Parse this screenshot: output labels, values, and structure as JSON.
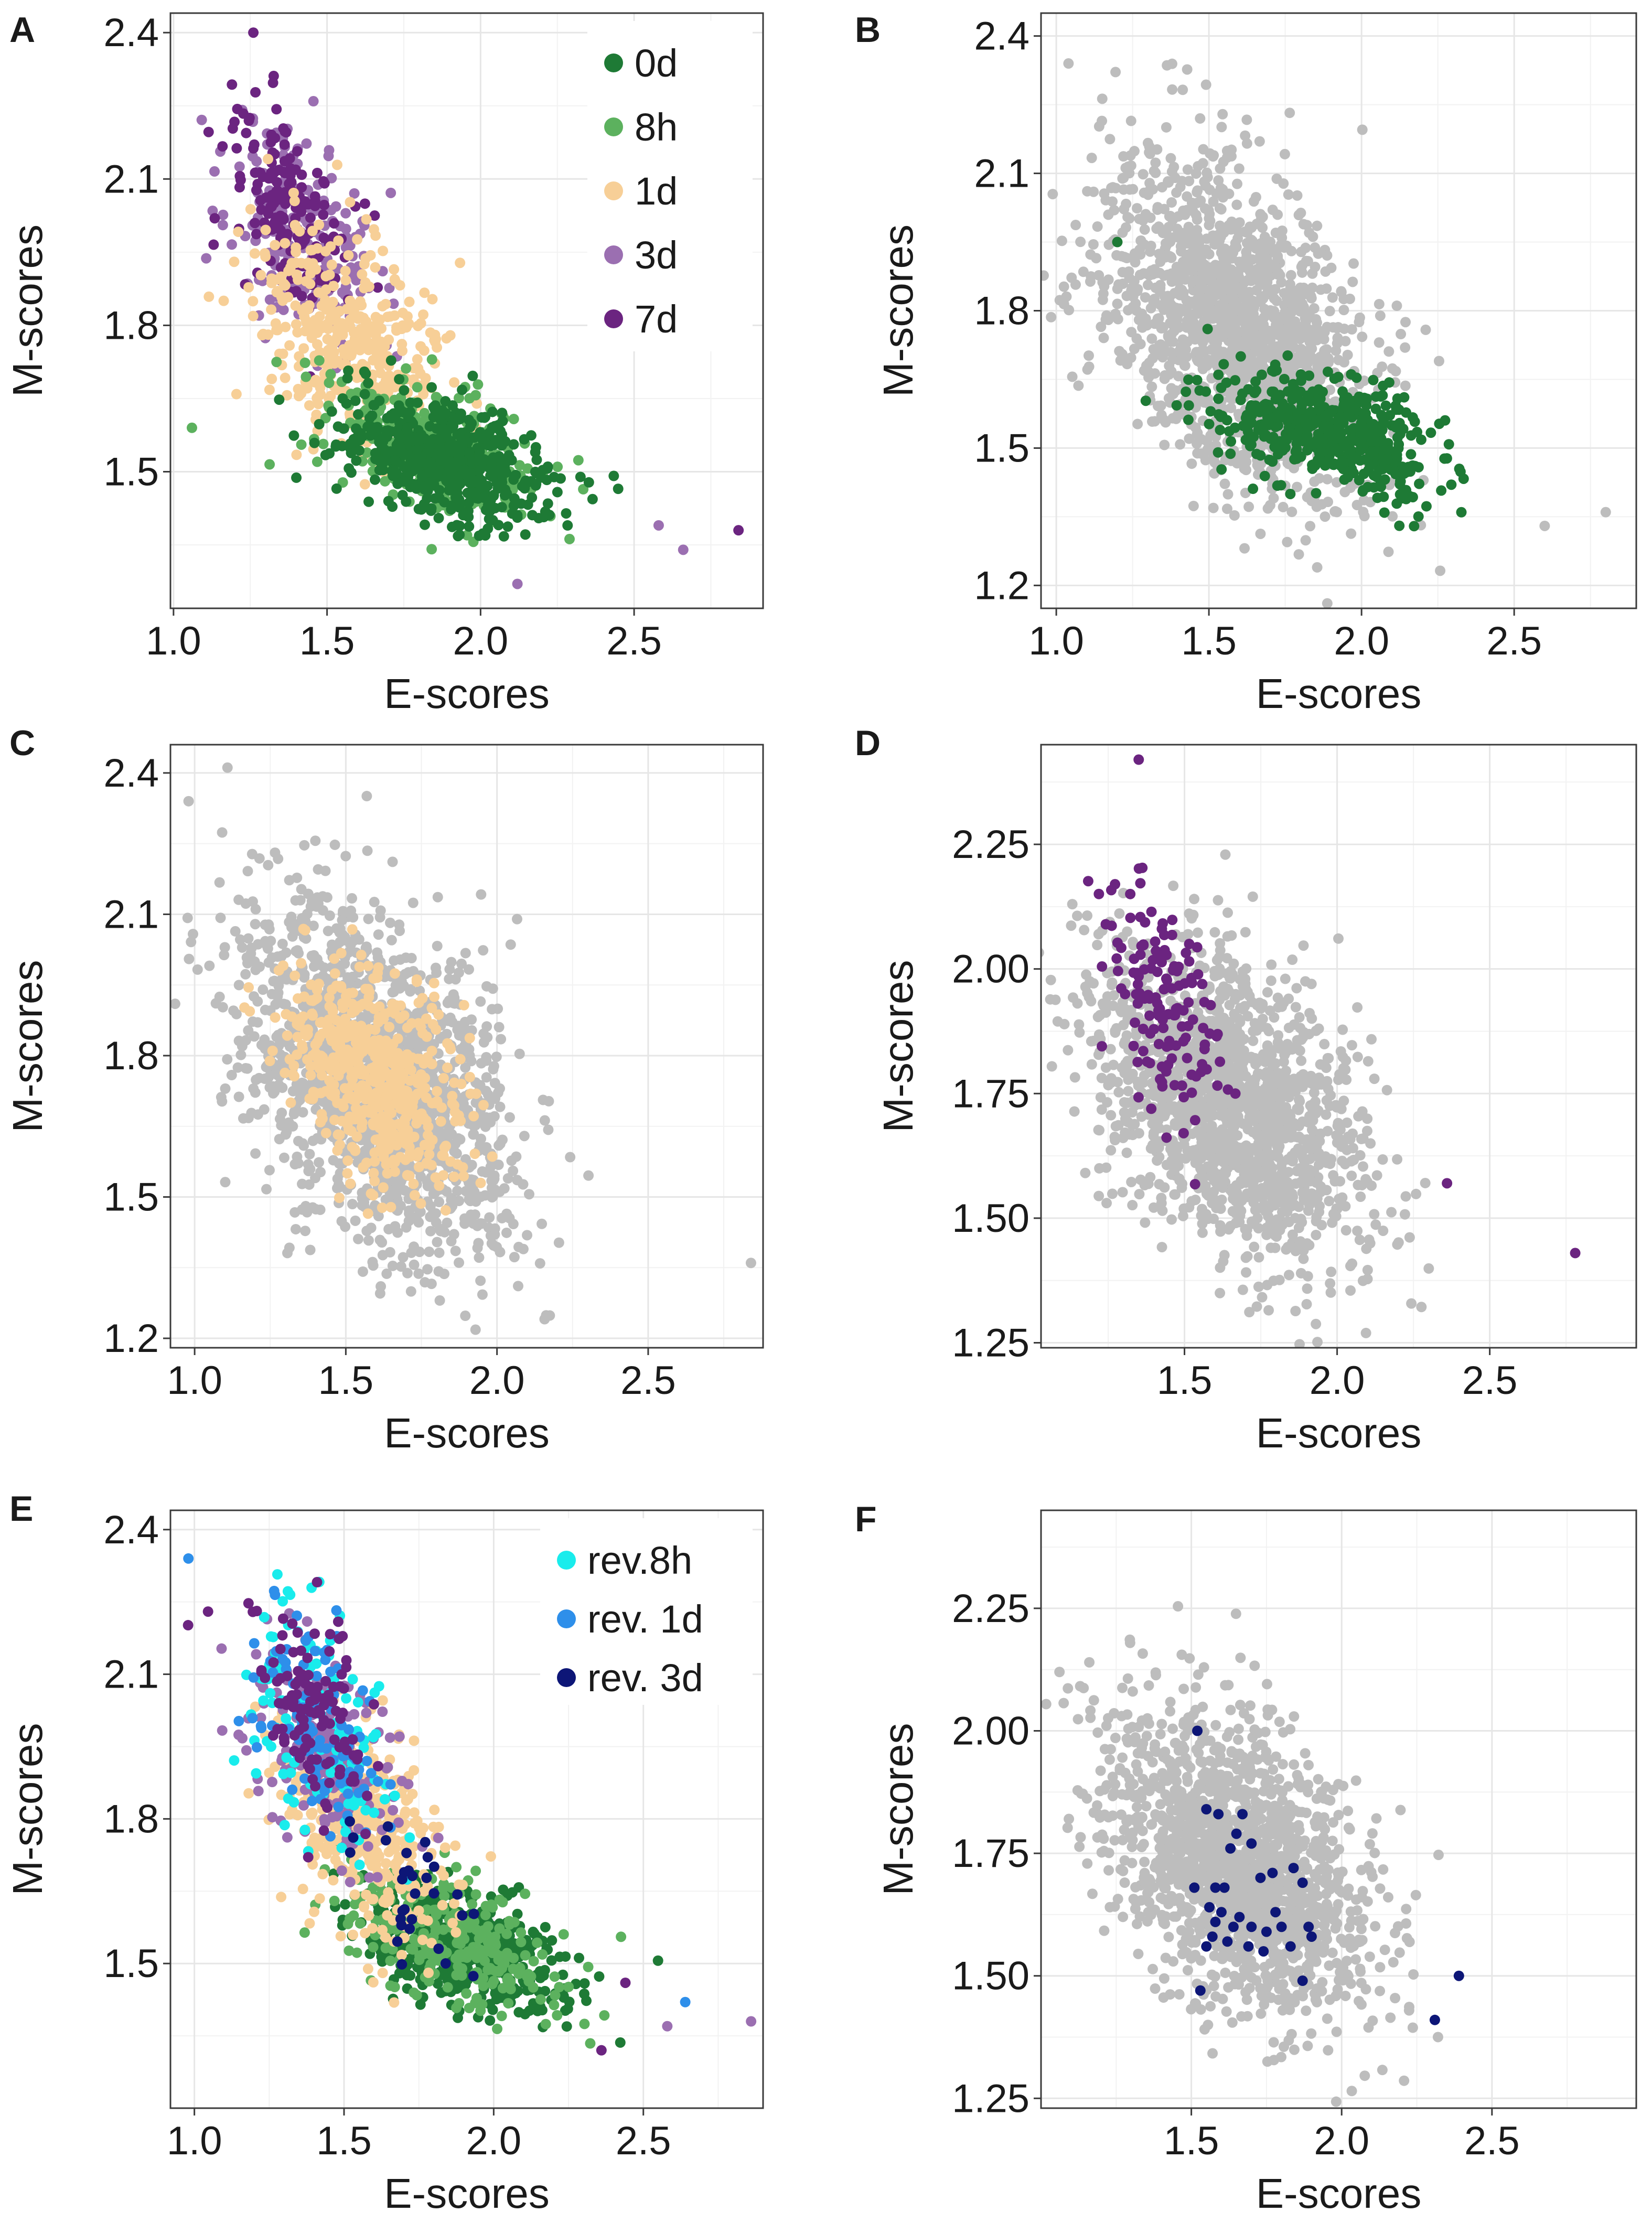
{
  "colors": {
    "0d": "#1e7a35",
    "8h": "#5cb15e",
    "1d": "#f7cf97",
    "3d": "#9b6fb1",
    "7d": "#6b2480",
    "gray": "#bdbdbd",
    "rev8h": "#19ecec",
    "rev1d": "#2e8fea",
    "rev3d": "#0d1677"
  },
  "chart_data": [
    {
      "panel": "A",
      "type": "scatter",
      "xlabel": "E-scores",
      "ylabel": "M-scores",
      "xlim": [
        0.99,
        2.92
      ],
      "ylim": [
        1.22,
        2.44
      ],
      "xticks": [
        "1.0",
        "1.5",
        "2.0",
        "2.5"
      ],
      "xtick_values": [
        1.0,
        1.5,
        2.0,
        2.5
      ],
      "yticks": [
        "1.5",
        "1.8",
        "2.1",
        "2.4"
      ],
      "ytick_values": [
        1.5,
        1.8,
        2.1,
        2.4
      ],
      "legend": {
        "position": "top-right",
        "entries": [
          {
            "label": "0d",
            "color_key": "0d"
          },
          {
            "label": "8h",
            "color_key": "8h"
          },
          {
            "label": "1d",
            "color_key": "1d"
          },
          {
            "label": "3d",
            "color_key": "3d"
          },
          {
            "label": "7d",
            "color_key": "7d"
          }
        ]
      },
      "series": [
        {
          "name": "3d",
          "color_key": "3d",
          "cx": 1.43,
          "cy": 1.98,
          "sx": 0.12,
          "sy": 0.13,
          "n": 220,
          "seed": 11
        },
        {
          "name": "7d",
          "color_key": "7d",
          "cx": 1.38,
          "cy": 2.03,
          "sx": 0.1,
          "sy": 0.12,
          "n": 160,
          "seed": 12
        },
        {
          "name": "1d",
          "color_key": "1d",
          "cx": 1.58,
          "cy": 1.76,
          "sx": 0.16,
          "sy": 0.13,
          "n": 420,
          "seed": 13
        },
        {
          "name": "8h",
          "color_key": "8h",
          "cx": 1.86,
          "cy": 1.55,
          "sx": 0.18,
          "sy": 0.08,
          "n": 300,
          "seed": 14
        },
        {
          "name": "0d",
          "color_key": "0d",
          "cx": 1.88,
          "cy": 1.53,
          "sx": 0.17,
          "sy": 0.07,
          "n": 560,
          "seed": 15
        }
      ],
      "points": [
        {
          "x": 2.84,
          "y": 1.38,
          "color_key": "7d"
        },
        {
          "x": 2.66,
          "y": 1.34,
          "color_key": "3d"
        },
        {
          "x": 2.58,
          "y": 1.39,
          "color_key": "3d"
        },
        {
          "x": 1.06,
          "y": 1.59,
          "color_key": "8h"
        },
        {
          "x": 1.26,
          "y": 2.4,
          "color_key": "7d"
        },
        {
          "x": 2.12,
          "y": 1.27,
          "color_key": "3d"
        }
      ]
    },
    {
      "panel": "B",
      "type": "scatter",
      "xlabel": "E-scores",
      "ylabel": "M-scores",
      "xlim": [
        0.95,
        2.9
      ],
      "ylim": [
        1.15,
        2.45
      ],
      "xticks": [
        "1.0",
        "1.5",
        "2.0",
        "2.5"
      ],
      "xtick_values": [
        1.0,
        1.5,
        2.0,
        2.5
      ],
      "yticks": [
        "1.2",
        "1.5",
        "1.8",
        "2.1",
        "2.4"
      ],
      "ytick_values": [
        1.2,
        1.5,
        1.8,
        2.1,
        2.4
      ],
      "series": [
        {
          "name": "other",
          "color_key": "gray",
          "cx": 1.6,
          "cy": 1.75,
          "sx": 0.22,
          "sy": 0.2,
          "n": 1600,
          "seed": 21
        },
        {
          "name": "0d",
          "color_key": "0d",
          "cx": 1.9,
          "cy": 1.53,
          "sx": 0.17,
          "sy": 0.07,
          "n": 520,
          "seed": 22
        }
      ],
      "points": [
        {
          "x": 1.04,
          "y": 2.34,
          "color_key": "gray"
        },
        {
          "x": 2.8,
          "y": 1.36,
          "color_key": "gray"
        },
        {
          "x": 2.6,
          "y": 1.33,
          "color_key": "gray"
        },
        {
          "x": 1.2,
          "y": 1.95,
          "color_key": "0d"
        }
      ]
    },
    {
      "panel": "C",
      "type": "scatter",
      "xlabel": "E-scores",
      "ylabel": "M-scores",
      "xlim": [
        0.92,
        2.88
      ],
      "ylim": [
        1.18,
        2.46
      ],
      "xticks": [
        "1.0",
        "1.5",
        "2.0",
        "2.5"
      ],
      "xtick_values": [
        1.0,
        1.5,
        2.0,
        2.5
      ],
      "yticks": [
        "1.2",
        "1.5",
        "1.8",
        "2.1",
        "2.4"
      ],
      "ytick_values": [
        1.2,
        1.5,
        1.8,
        2.1,
        2.4
      ],
      "series": [
        {
          "name": "other",
          "color_key": "gray",
          "cx": 1.6,
          "cy": 1.75,
          "sx": 0.22,
          "sy": 0.2,
          "n": 1600,
          "seed": 31
        },
        {
          "name": "1d",
          "color_key": "1d",
          "cx": 1.58,
          "cy": 1.76,
          "sx": 0.15,
          "sy": 0.13,
          "n": 560,
          "seed": 32
        }
      ],
      "points": [
        {
          "x": 0.98,
          "y": 2.34,
          "color_key": "gray"
        },
        {
          "x": 2.84,
          "y": 1.36,
          "color_key": "gray"
        }
      ]
    },
    {
      "panel": "D",
      "type": "scatter",
      "xlabel": "E-scores",
      "ylabel": "M-scores",
      "xlim": [
        1.03,
        2.98
      ],
      "ylim": [
        1.24,
        2.45
      ],
      "xticks": [
        "1.5",
        "2.0",
        "2.5"
      ],
      "xtick_values": [
        1.5,
        2.0,
        2.5
      ],
      "yticks": [
        "1.25",
        "1.50",
        "1.75",
        "2.00",
        "2.25"
      ],
      "ytick_values": [
        1.25,
        1.5,
        1.75,
        2.0,
        2.25
      ],
      "series": [
        {
          "name": "other",
          "color_key": "gray",
          "cx": 1.65,
          "cy": 1.73,
          "sx": 0.22,
          "sy": 0.17,
          "n": 1600,
          "seed": 41
        },
        {
          "name": "7d",
          "color_key": "7d",
          "cx": 1.42,
          "cy": 1.94,
          "sx": 0.1,
          "sy": 0.14,
          "n": 140,
          "seed": 42
        }
      ],
      "points": [
        {
          "x": 2.78,
          "y": 1.43,
          "color_key": "7d"
        },
        {
          "x": 2.36,
          "y": 1.57,
          "color_key": "7d"
        },
        {
          "x": 1.35,
          "y": 2.42,
          "color_key": "7d"
        }
      ]
    },
    {
      "panel": "E",
      "type": "scatter",
      "xlabel": "E-scores",
      "ylabel": "M-scores",
      "xlim": [
        0.92,
        2.9
      ],
      "ylim": [
        1.2,
        2.44
      ],
      "xticks": [
        "1.0",
        "1.5",
        "2.0",
        "2.5"
      ],
      "xtick_values": [
        1.0,
        1.5,
        2.0,
        2.5
      ],
      "yticks": [
        "1.5",
        "1.8",
        "2.1",
        "2.4"
      ],
      "ytick_values": [
        1.5,
        1.8,
        2.1,
        2.4
      ],
      "legend": {
        "position": "top-right",
        "entries": [
          {
            "label": "rev.8h",
            "color_key": "rev8h"
          },
          {
            "label": "rev. 1d",
            "color_key": "rev1d"
          },
          {
            "label": "rev. 3d",
            "color_key": "rev3d"
          }
        ]
      },
      "series": [
        {
          "name": "0d",
          "color_key": "0d",
          "cx": 1.9,
          "cy": 1.53,
          "sx": 0.17,
          "sy": 0.07,
          "n": 560,
          "seed": 51
        },
        {
          "name": "8h",
          "color_key": "8h",
          "cx": 1.86,
          "cy": 1.55,
          "sx": 0.18,
          "sy": 0.08,
          "n": 260,
          "seed": 52
        },
        {
          "name": "1d",
          "color_key": "1d",
          "cx": 1.58,
          "cy": 1.77,
          "sx": 0.15,
          "sy": 0.13,
          "n": 380,
          "seed": 53
        },
        {
          "name": "3d",
          "color_key": "3d",
          "cx": 1.43,
          "cy": 1.96,
          "sx": 0.12,
          "sy": 0.13,
          "n": 200,
          "seed": 54
        },
        {
          "name": "rev.8h",
          "color_key": "rev8h",
          "cx": 1.4,
          "cy": 1.98,
          "sx": 0.13,
          "sy": 0.15,
          "n": 120,
          "seed": 55
        },
        {
          "name": "rev. 1d",
          "color_key": "rev1d",
          "cx": 1.4,
          "cy": 2.0,
          "sx": 0.11,
          "sy": 0.12,
          "n": 100,
          "seed": 56
        },
        {
          "name": "7d",
          "color_key": "7d",
          "cx": 1.38,
          "cy": 2.02,
          "sx": 0.1,
          "sy": 0.12,
          "n": 120,
          "seed": 57
        },
        {
          "name": "rev. 3d",
          "color_key": "rev3d",
          "cx": 1.68,
          "cy": 1.66,
          "sx": 0.1,
          "sy": 0.07,
          "n": 30,
          "seed": 58
        }
      ],
      "points": [
        {
          "x": 0.98,
          "y": 2.34,
          "color_key": "rev1d"
        },
        {
          "x": 2.64,
          "y": 1.42,
          "color_key": "rev1d"
        },
        {
          "x": 2.86,
          "y": 1.38,
          "color_key": "3d"
        },
        {
          "x": 2.58,
          "y": 1.37,
          "color_key": "3d"
        },
        {
          "x": 2.36,
          "y": 1.32,
          "color_key": "7d"
        },
        {
          "x": 2.44,
          "y": 1.46,
          "color_key": "7d"
        }
      ]
    },
    {
      "panel": "F",
      "type": "scatter",
      "xlabel": "E-scores",
      "ylabel": "M-scores",
      "xlim": [
        1.0,
        2.98
      ],
      "ylim": [
        1.23,
        2.45
      ],
      "xticks": [
        "1.5",
        "2.0",
        "2.5"
      ],
      "xtick_values": [
        1.5,
        2.0,
        2.5
      ],
      "yticks": [
        "1.25",
        "1.50",
        "1.75",
        "2.00",
        "2.25"
      ],
      "ytick_values": [
        1.25,
        1.5,
        1.75,
        2.0,
        2.25
      ],
      "series": [
        {
          "name": "other",
          "color_key": "gray",
          "cx": 1.65,
          "cy": 1.73,
          "sx": 0.22,
          "sy": 0.17,
          "n": 1600,
          "seed": 61
        }
      ],
      "points": [
        {
          "x": 1.52,
          "y": 2.0,
          "color_key": "rev3d"
        },
        {
          "x": 1.59,
          "y": 1.83,
          "color_key": "rev3d"
        },
        {
          "x": 1.65,
          "y": 1.79,
          "color_key": "rev3d"
        },
        {
          "x": 1.67,
          "y": 1.83,
          "color_key": "rev3d"
        },
        {
          "x": 1.55,
          "y": 1.84,
          "color_key": "rev3d"
        },
        {
          "x": 1.63,
          "y": 1.76,
          "color_key": "rev3d"
        },
        {
          "x": 1.7,
          "y": 1.77,
          "color_key": "rev3d"
        },
        {
          "x": 1.51,
          "y": 1.68,
          "color_key": "rev3d"
        },
        {
          "x": 1.58,
          "y": 1.68,
          "color_key": "rev3d"
        },
        {
          "x": 1.61,
          "y": 1.68,
          "color_key": "rev3d"
        },
        {
          "x": 1.73,
          "y": 1.7,
          "color_key": "rev3d"
        },
        {
          "x": 1.77,
          "y": 1.71,
          "color_key": "rev3d"
        },
        {
          "x": 1.84,
          "y": 1.72,
          "color_key": "rev3d"
        },
        {
          "x": 1.87,
          "y": 1.69,
          "color_key": "rev3d"
        },
        {
          "x": 1.56,
          "y": 1.64,
          "color_key": "rev3d"
        },
        {
          "x": 1.6,
          "y": 1.63,
          "color_key": "rev3d"
        },
        {
          "x": 1.66,
          "y": 1.62,
          "color_key": "rev3d"
        },
        {
          "x": 1.58,
          "y": 1.61,
          "color_key": "rev3d"
        },
        {
          "x": 1.64,
          "y": 1.6,
          "color_key": "rev3d"
        },
        {
          "x": 1.7,
          "y": 1.6,
          "color_key": "rev3d"
        },
        {
          "x": 1.75,
          "y": 1.59,
          "color_key": "rev3d"
        },
        {
          "x": 1.8,
          "y": 1.6,
          "color_key": "rev3d"
        },
        {
          "x": 1.83,
          "y": 1.56,
          "color_key": "rev3d"
        },
        {
          "x": 1.89,
          "y": 1.6,
          "color_key": "rev3d"
        },
        {
          "x": 1.57,
          "y": 1.58,
          "color_key": "rev3d"
        },
        {
          "x": 1.69,
          "y": 1.56,
          "color_key": "rev3d"
        },
        {
          "x": 1.74,
          "y": 1.55,
          "color_key": "rev3d"
        },
        {
          "x": 1.62,
          "y": 1.57,
          "color_key": "rev3d"
        },
        {
          "x": 1.55,
          "y": 1.56,
          "color_key": "rev3d"
        },
        {
          "x": 1.9,
          "y": 1.58,
          "color_key": "rev3d"
        },
        {
          "x": 1.53,
          "y": 1.47,
          "color_key": "rev3d"
        },
        {
          "x": 1.87,
          "y": 1.49,
          "color_key": "rev3d"
        },
        {
          "x": 2.39,
          "y": 1.5,
          "color_key": "rev3d"
        },
        {
          "x": 2.31,
          "y": 1.41,
          "color_key": "rev3d"
        },
        {
          "x": 1.78,
          "y": 1.63,
          "color_key": "rev3d"
        }
      ]
    }
  ]
}
